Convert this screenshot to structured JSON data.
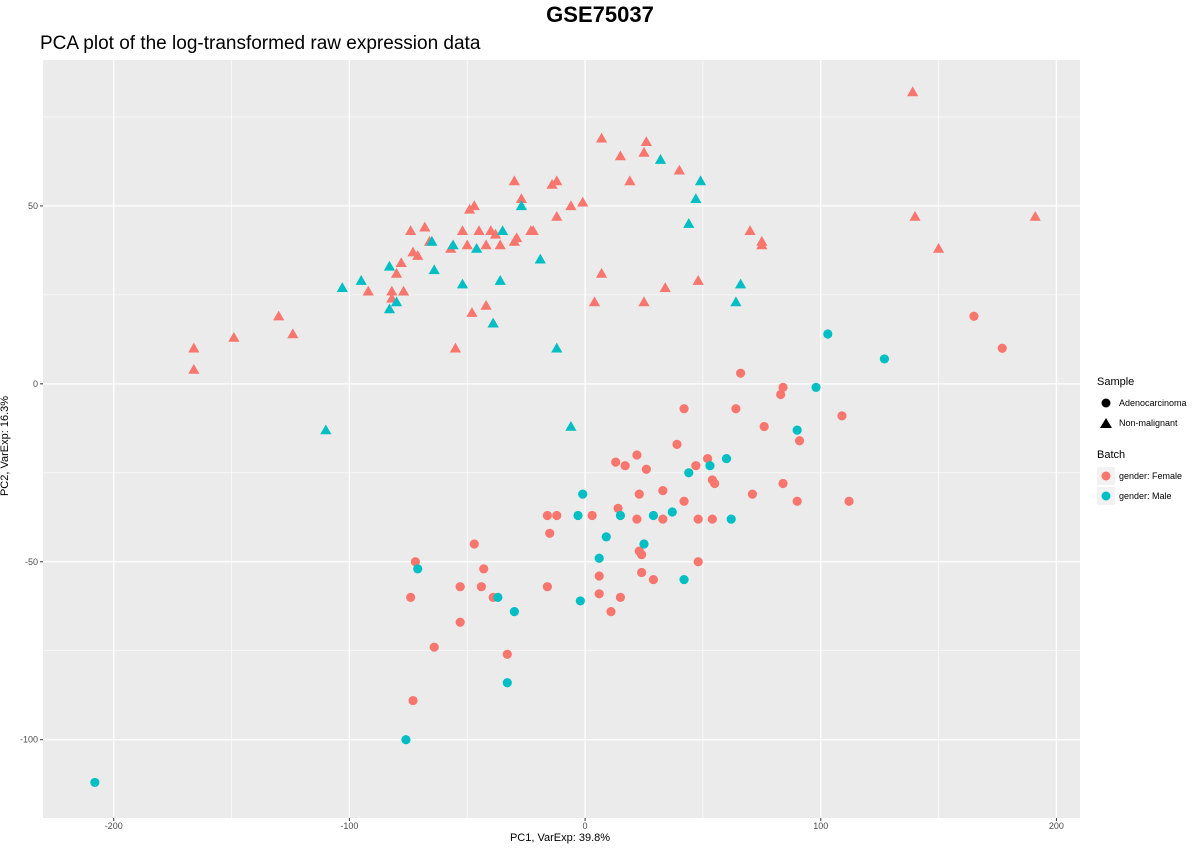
{
  "chart_data": {
    "type": "scatter",
    "title": "GSE75037",
    "subtitle": "PCA plot of the log-transformed raw expression data",
    "xlabel": "PC1, VarExp: 39.8%",
    "ylabel": "PC2, VarExp: 16.3%",
    "xlim": [
      -230,
      210
    ],
    "ylim": [
      -122,
      91
    ],
    "xticks": [
      -200,
      -100,
      0,
      100,
      200
    ],
    "yticks": [
      -100,
      -50,
      0,
      50
    ],
    "colors": {
      "female": "#F8766D",
      "male": "#00BFC4",
      "panel": "#EBEBEB",
      "grid": "#FFFFFF"
    },
    "legend": {
      "sample_title": "Sample",
      "sample_items": [
        {
          "label": "Adenocarcinoma",
          "shape": "circle"
        },
        {
          "label": "Non-malignant",
          "shape": "triangle"
        }
      ],
      "batch_title": "Batch",
      "batch_items": [
        {
          "label": "gender: Female",
          "color": "#F8766D"
        },
        {
          "label": "gender: Male",
          "color": "#00BFC4"
        }
      ]
    },
    "series": [
      {
        "name": "Non-malignant, gender: Female",
        "shape": "triangle",
        "color": "#F8766D",
        "points": [
          [
            139,
            82
          ],
          [
            7,
            69
          ],
          [
            26,
            68
          ],
          [
            25,
            65
          ],
          [
            15,
            64
          ],
          [
            40,
            60
          ],
          [
            19,
            57
          ],
          [
            -30,
            57
          ],
          [
            -12,
            57
          ],
          [
            -14,
            56
          ],
          [
            -27,
            52
          ],
          [
            -6,
            50
          ],
          [
            -1,
            51
          ],
          [
            -12,
            47
          ],
          [
            -49,
            49
          ],
          [
            -47,
            50
          ],
          [
            -74,
            43
          ],
          [
            -68,
            44
          ],
          [
            -52,
            43
          ],
          [
            -45,
            43
          ],
          [
            -40,
            43
          ],
          [
            -38,
            42
          ],
          [
            -23,
            43
          ],
          [
            -22,
            43
          ],
          [
            -29,
            41
          ],
          [
            -30,
            40
          ],
          [
            -36,
            39
          ],
          [
            -42,
            39
          ],
          [
            -50,
            39
          ],
          [
            -66,
            40
          ],
          [
            -71,
            36
          ],
          [
            -73,
            37
          ],
          [
            -57,
            38
          ],
          [
            -78,
            34
          ],
          [
            -80,
            31
          ],
          [
            -77,
            26
          ],
          [
            -82,
            26
          ],
          [
            -82,
            24
          ],
          [
            -92,
            26
          ],
          [
            7,
            31
          ],
          [
            34,
            27
          ],
          [
            48,
            29
          ],
          [
            4,
            23
          ],
          [
            25,
            23
          ],
          [
            -42,
            22
          ],
          [
            -48,
            20
          ],
          [
            -39,
            17
          ],
          [
            -55,
            10
          ],
          [
            -130,
            19
          ],
          [
            -124,
            14
          ],
          [
            -149,
            13
          ],
          [
            -166,
            10
          ],
          [
            -166,
            4
          ],
          [
            140,
            47
          ],
          [
            150,
            38
          ],
          [
            191,
            47
          ],
          [
            70,
            43
          ],
          [
            75,
            40
          ],
          [
            75,
            39
          ]
        ]
      },
      {
        "name": "Non-malignant, gender: Male",
        "shape": "triangle",
        "color": "#00BFC4",
        "points": [
          [
            32,
            63
          ],
          [
            49,
            57
          ],
          [
            47,
            52
          ],
          [
            -27,
            50
          ],
          [
            -35,
            43
          ],
          [
            44,
            45
          ],
          [
            -65,
            40
          ],
          [
            -56,
            39
          ],
          [
            -46,
            38
          ],
          [
            -19,
            35
          ],
          [
            -64,
            32
          ],
          [
            -52,
            28
          ],
          [
            -36,
            29
          ],
          [
            -103,
            27
          ],
          [
            -95,
            29
          ],
          [
            -83,
            33
          ],
          [
            -80,
            23
          ],
          [
            -83,
            21
          ],
          [
            66,
            28
          ],
          [
            64,
            23
          ],
          [
            -39,
            17
          ],
          [
            -12,
            10
          ],
          [
            -110,
            -13
          ],
          [
            -6,
            -12
          ]
        ]
      },
      {
        "name": "Adenocarcinoma, gender: Female",
        "shape": "circle",
        "color": "#F8766D",
        "points": [
          [
            165,
            19
          ],
          [
            177,
            10
          ],
          [
            66,
            3
          ],
          [
            84,
            -1
          ],
          [
            83,
            -3
          ],
          [
            64,
            -7
          ],
          [
            42,
            -7
          ],
          [
            109,
            -9
          ],
          [
            76,
            -12
          ],
          [
            91,
            -16
          ],
          [
            39,
            -17
          ],
          [
            22,
            -20
          ],
          [
            52,
            -21
          ],
          [
            47,
            -23
          ],
          [
            17,
            -23
          ],
          [
            13,
            -22
          ],
          [
            26,
            -24
          ],
          [
            54,
            -27
          ],
          [
            55,
            -28
          ],
          [
            71,
            -31
          ],
          [
            84,
            -28
          ],
          [
            42,
            -33
          ],
          [
            33,
            -30
          ],
          [
            23,
            -31
          ],
          [
            90,
            -33
          ],
          [
            112,
            -33
          ],
          [
            -47,
            -45
          ],
          [
            -16,
            -37
          ],
          [
            -12,
            -37
          ],
          [
            3,
            -37
          ],
          [
            14,
            -35
          ],
          [
            22,
            -38
          ],
          [
            33,
            -38
          ],
          [
            48,
            -38
          ],
          [
            54,
            -38
          ],
          [
            -15,
            -42
          ],
          [
            6,
            -54
          ],
          [
            23,
            -47
          ],
          [
            24,
            -48
          ],
          [
            48,
            -50
          ],
          [
            -72,
            -50
          ],
          [
            -43,
            -52
          ],
          [
            24,
            -53
          ],
          [
            29,
            -55
          ],
          [
            -16,
            -57
          ],
          [
            -53,
            -57
          ],
          [
            -44,
            -57
          ],
          [
            -39,
            -60
          ],
          [
            -74,
            -60
          ],
          [
            6,
            -59
          ],
          [
            15,
            -60
          ],
          [
            11,
            -64
          ],
          [
            -53,
            -67
          ],
          [
            -64,
            -74
          ],
          [
            -33,
            -76
          ],
          [
            -73,
            -89
          ]
        ]
      },
      {
        "name": "Adenocarcinoma, gender: Male",
        "shape": "circle",
        "color": "#00BFC4",
        "points": [
          [
            103,
            14
          ],
          [
            127,
            7
          ],
          [
            98,
            -1
          ],
          [
            90,
            -13
          ],
          [
            60,
            -21
          ],
          [
            53,
            -23
          ],
          [
            44,
            -25
          ],
          [
            -1,
            -31
          ],
          [
            -3,
            -37
          ],
          [
            15,
            -37
          ],
          [
            29,
            -37
          ],
          [
            37,
            -36
          ],
          [
            62,
            -38
          ],
          [
            9,
            -43
          ],
          [
            25,
            -45
          ],
          [
            6,
            -49
          ],
          [
            -71,
            -52
          ],
          [
            42,
            -55
          ],
          [
            -2,
            -61
          ],
          [
            -37,
            -60
          ],
          [
            -30,
            -64
          ],
          [
            -33,
            -84
          ],
          [
            -76,
            -100
          ],
          [
            -208,
            -112
          ]
        ]
      }
    ]
  }
}
